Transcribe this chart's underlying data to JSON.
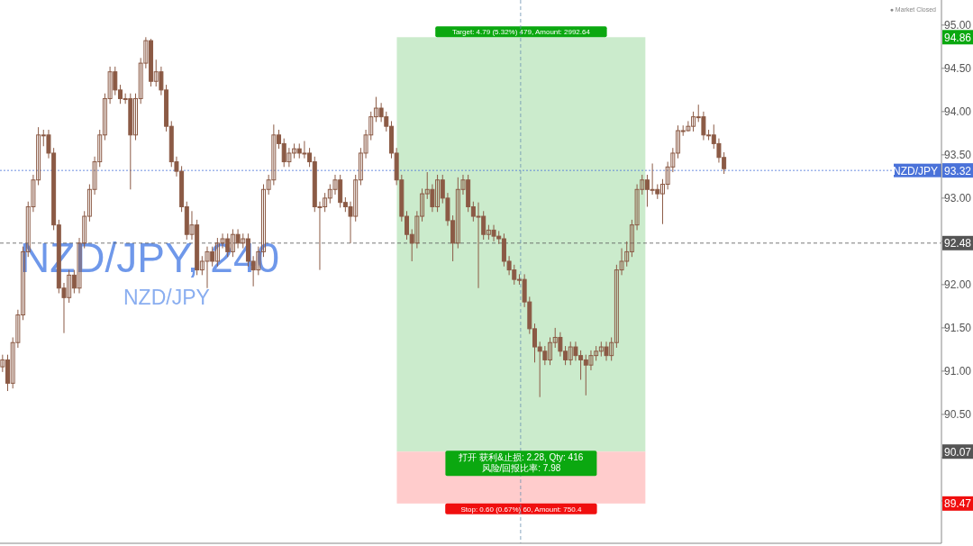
{
  "chart_data": {
    "type": "candlestick",
    "title": "NZD/JPY, 240",
    "subtitle": "NZD/JPY",
    "categories": [
      null,
      null,
      null,
      null,
      null,
      null,
      null,
      null,
      null,
      null,
      null,
      null,
      null,
      null,
      null,
      null,
      null,
      null,
      null,
      null,
      null,
      null,
      null,
      null,
      null,
      null,
      null,
      null,
      null,
      null,
      null,
      null,
      null,
      null,
      null,
      null,
      null,
      null,
      null,
      null,
      null,
      null,
      null,
      null,
      null,
      null,
      null,
      null,
      null,
      null,
      null,
      null,
      null,
      null,
      null,
      null,
      null,
      null,
      null,
      null,
      null,
      null,
      null,
      null,
      null,
      null,
      null,
      null,
      null,
      null,
      null,
      null,
      null,
      null,
      null,
      null,
      null,
      null,
      null,
      null,
      null,
      null,
      null,
      null,
      null,
      null,
      null,
      null,
      null,
      null,
      null,
      null,
      null,
      null,
      null,
      null,
      null,
      null,
      null,
      null,
      null,
      null,
      null,
      null,
      null,
      null,
      null,
      null,
      null,
      null,
      null,
      null,
      null,
      null,
      null,
      null,
      null,
      null,
      null,
      null,
      null,
      null,
      null,
      null,
      null,
      null,
      null,
      null,
      null,
      null,
      null,
      null,
      null,
      null,
      null,
      null,
      null,
      null,
      null,
      null,
      null,
      null,
      null,
      null,
      null,
      null,
      null,
      null,
      null,
      null,
      null,
      null,
      null,
      null,
      null,
      null,
      null,
      null,
      null,
      null,
      null,
      null,
      null,
      null,
      null,
      null,
      null,
      null,
      null,
      null,
      null,
      null,
      null,
      null,
      null,
      null,
      null,
      null,
      null,
      null,
      null,
      null,
      null,
      null
    ],
    "color": "#8b5a45",
    "ohlc": [
      [
        91.05,
        91.19,
        90.99,
        91.13
      ],
      [
        91.13,
        91.19,
        90.77,
        90.86
      ],
      [
        90.86,
        91.39,
        90.8,
        91.33
      ],
      [
        91.33,
        91.71,
        91.27,
        91.65
      ],
      [
        91.65,
        92.44,
        91.59,
        92.38
      ],
      [
        92.38,
        92.96,
        92.32,
        92.9
      ],
      [
        92.9,
        93.27,
        92.84,
        93.21
      ],
      [
        93.21,
        93.82,
        93.15,
        93.73
      ],
      [
        93.73,
        93.79,
        93.6,
        93.73
      ],
      [
        93.73,
        93.79,
        93.46,
        93.52
      ],
      [
        93.52,
        93.58,
        92.63,
        92.69
      ],
      [
        92.69,
        92.75,
        91.9,
        91.96
      ],
      [
        91.96,
        92.02,
        91.44,
        91.85
      ],
      [
        91.85,
        92.17,
        91.79,
        92.11
      ],
      [
        92.11,
        92.17,
        91.9,
        91.96
      ],
      [
        91.96,
        92.54,
        91.9,
        92.48
      ],
      [
        92.48,
        92.85,
        92.42,
        92.79
      ],
      [
        92.79,
        93.16,
        92.73,
        93.1
      ],
      [
        93.1,
        93.48,
        93.04,
        93.42
      ],
      [
        93.42,
        93.79,
        93.36,
        93.73
      ],
      [
        93.73,
        94.21,
        93.67,
        94.15
      ],
      [
        94.15,
        94.52,
        94.09,
        94.46
      ],
      [
        94.46,
        94.52,
        94.19,
        94.25
      ],
      [
        94.25,
        94.31,
        94.09,
        94.15
      ],
      [
        94.15,
        94.21,
        94.09,
        94.15
      ],
      [
        94.15,
        94.21,
        93.1,
        93.73
      ],
      [
        93.73,
        94.21,
        93.67,
        94.15
      ],
      [
        94.15,
        94.62,
        94.09,
        94.56
      ],
      [
        94.56,
        94.86,
        94.5,
        94.82
      ],
      [
        94.82,
        94.84,
        94.29,
        94.35
      ],
      [
        94.35,
        94.6,
        94.29,
        94.46
      ],
      [
        94.46,
        94.52,
        94.19,
        94.25
      ],
      [
        94.25,
        94.31,
        93.77,
        93.83
      ],
      [
        93.83,
        93.89,
        93.36,
        93.42
      ],
      [
        93.42,
        93.48,
        93.25,
        93.31
      ],
      [
        93.31,
        93.37,
        92.84,
        92.9
      ],
      [
        92.9,
        92.96,
        92.52,
        92.58
      ],
      [
        92.58,
        92.85,
        92.52,
        92.69
      ],
      [
        92.69,
        92.75,
        92.11,
        92.17
      ],
      [
        92.17,
        92.33,
        92.11,
        92.27
      ],
      [
        92.27,
        92.44,
        91.96,
        92.38
      ],
      [
        92.38,
        92.44,
        92.21,
        92.27
      ],
      [
        92.27,
        92.54,
        92.21,
        92.48
      ],
      [
        92.48,
        92.59,
        92.42,
        92.53
      ],
      [
        92.53,
        92.59,
        92.32,
        92.38
      ],
      [
        92.38,
        92.64,
        92.32,
        92.58
      ],
      [
        92.58,
        92.64,
        92.42,
        92.48
      ],
      [
        92.48,
        92.59,
        92.42,
        92.53
      ],
      [
        92.53,
        92.59,
        92.21,
        92.27
      ],
      [
        92.27,
        92.33,
        91.98,
        92.17
      ],
      [
        92.17,
        92.44,
        92.11,
        92.38
      ],
      [
        92.38,
        93.16,
        92.32,
        93.1
      ],
      [
        93.1,
        93.27,
        93.04,
        93.21
      ],
      [
        93.21,
        93.85,
        93.15,
        93.73
      ],
      [
        93.73,
        93.79,
        93.57,
        93.63
      ],
      [
        93.63,
        93.69,
        93.36,
        93.42
      ],
      [
        93.42,
        93.58,
        93.36,
        93.52
      ],
      [
        93.52,
        93.63,
        93.46,
        93.57
      ],
      [
        93.57,
        93.63,
        93.46,
        93.52
      ],
      [
        93.52,
        93.66,
        93.46,
        93.52
      ],
      [
        93.52,
        93.58,
        93.36,
        93.42
      ],
      [
        93.42,
        93.48,
        92.84,
        92.9
      ],
      [
        92.9,
        92.96,
        92.17,
        92.9
      ],
      [
        92.9,
        93.06,
        92.84,
        93.0
      ],
      [
        93.0,
        93.16,
        92.94,
        93.1
      ],
      [
        93.1,
        93.27,
        93.04,
        93.21
      ],
      [
        93.21,
        93.27,
        92.89,
        92.95
      ],
      [
        92.95,
        93.01,
        92.84,
        92.9
      ],
      [
        92.9,
        92.96,
        92.48,
        92.79
      ],
      [
        92.79,
        93.27,
        92.73,
        93.21
      ],
      [
        93.21,
        93.58,
        93.15,
        93.52
      ],
      [
        93.52,
        93.79,
        93.46,
        93.73
      ],
      [
        93.73,
        94.0,
        93.67,
        93.94
      ],
      [
        93.94,
        94.17,
        93.88,
        94.04
      ],
      [
        94.04,
        94.1,
        93.88,
        93.94
      ],
      [
        93.94,
        94.0,
        93.77,
        93.83
      ],
      [
        93.83,
        93.89,
        93.46,
        93.52
      ],
      [
        93.52,
        93.58,
        93.15,
        93.21
      ],
      [
        93.21,
        93.27,
        92.73,
        92.79
      ],
      [
        92.79,
        92.85,
        92.52,
        92.58
      ],
      [
        92.58,
        92.64,
        92.27,
        92.48
      ],
      [
        92.48,
        92.85,
        92.42,
        92.79
      ],
      [
        92.79,
        93.11,
        92.73,
        93.05
      ],
      [
        93.05,
        93.3,
        92.99,
        93.1
      ],
      [
        93.1,
        93.16,
        92.84,
        92.9
      ],
      [
        92.9,
        93.27,
        92.84,
        93.21
      ],
      [
        93.21,
        93.27,
        92.94,
        93.0
      ],
      [
        93.0,
        93.06,
        92.68,
        92.74
      ],
      [
        92.74,
        92.8,
        92.27,
        92.48
      ],
      [
        92.48,
        93.24,
        92.42,
        93.1
      ],
      [
        93.1,
        93.27,
        93.04,
        93.21
      ],
      [
        93.21,
        93.27,
        92.84,
        92.9
      ],
      [
        92.9,
        92.96,
        92.73,
        92.79
      ],
      [
        92.79,
        92.95,
        91.96,
        92.79
      ],
      [
        92.79,
        92.85,
        92.52,
        92.58
      ],
      [
        92.58,
        92.69,
        92.52,
        92.63
      ],
      [
        92.63,
        92.69,
        92.5,
        92.56
      ],
      [
        92.56,
        92.62,
        92.47,
        92.53
      ],
      [
        92.53,
        92.59,
        92.21,
        92.27
      ],
      [
        92.27,
        92.33,
        92.11,
        92.17
      ],
      [
        92.17,
        92.23,
        92.0,
        92.06
      ],
      [
        92.06,
        92.12,
        92.0,
        92.06
      ],
      [
        92.06,
        92.12,
        91.74,
        91.8
      ],
      [
        91.8,
        91.86,
        91.43,
        91.49
      ],
      [
        91.49,
        91.55,
        91.1,
        91.28
      ],
      [
        91.28,
        91.34,
        90.7,
        91.23
      ],
      [
        91.23,
        91.29,
        91.07,
        91.13
      ],
      [
        91.13,
        91.39,
        91.07,
        91.33
      ],
      [
        91.33,
        91.5,
        91.27,
        91.39
      ],
      [
        91.39,
        91.45,
        91.17,
        91.23
      ],
      [
        91.23,
        91.29,
        91.07,
        91.13
      ],
      [
        91.13,
        91.34,
        91.07,
        91.28
      ],
      [
        91.28,
        91.34,
        91.12,
        91.18
      ],
      [
        91.18,
        91.24,
        90.9,
        91.13
      ],
      [
        91.13,
        91.19,
        90.72,
        91.07
      ],
      [
        91.07,
        91.24,
        91.01,
        91.18
      ],
      [
        91.18,
        91.29,
        91.12,
        91.23
      ],
      [
        91.23,
        91.34,
        91.17,
        91.28
      ],
      [
        91.28,
        91.34,
        91.12,
        91.18
      ],
      [
        91.18,
        91.39,
        91.12,
        91.33
      ],
      [
        91.33,
        92.23,
        91.27,
        92.17
      ],
      [
        92.17,
        92.42,
        92.11,
        92.27
      ],
      [
        92.27,
        92.5,
        92.21,
        92.38
      ],
      [
        92.38,
        92.75,
        92.32,
        92.69
      ],
      [
        92.69,
        93.16,
        92.63,
        93.1
      ],
      [
        93.1,
        93.27,
        93.04,
        93.21
      ],
      [
        93.21,
        93.27,
        92.9,
        93.1
      ],
      [
        93.1,
        93.4,
        93.04,
        93.1
      ],
      [
        93.1,
        93.16,
        92.99,
        93.05
      ],
      [
        93.05,
        93.22,
        92.7,
        93.16
      ],
      [
        93.16,
        93.42,
        93.1,
        93.36
      ],
      [
        93.36,
        93.58,
        93.3,
        93.52
      ],
      [
        93.52,
        93.84,
        93.46,
        93.78
      ],
      [
        93.78,
        93.84,
        93.72,
        93.78
      ],
      [
        93.78,
        93.89,
        93.77,
        93.83
      ],
      [
        93.83,
        94.0,
        93.77,
        93.94
      ],
      [
        93.94,
        94.08,
        93.88,
        93.94
      ],
      [
        93.94,
        94.0,
        93.67,
        93.73
      ],
      [
        93.73,
        93.79,
        93.67,
        93.73
      ],
      [
        93.73,
        93.85,
        93.57,
        93.63
      ],
      [
        93.63,
        93.69,
        93.41,
        93.47
      ],
      [
        93.47,
        93.53,
        93.28,
        93.34
      ],
      null,
      null,
      null,
      null,
      null,
      null,
      null,
      null,
      null,
      null,
      null,
      null,
      null,
      null,
      null,
      null,
      null,
      null,
      null,
      null,
      null,
      null,
      null,
      null,
      null,
      null,
      null,
      null,
      null,
      null,
      null,
      null,
      null,
      null,
      null,
      null,
      null,
      null,
      null,
      null,
      null,
      null
    ],
    "ylim": [
      89.01,
      95.29
    ],
    "yticks": [
      {
        "value": 89.5,
        "label": null
      },
      {
        "value": 90,
        "label": null
      },
      {
        "value": 90.5,
        "label": "90.50"
      },
      {
        "value": 91,
        "label": "91.00"
      },
      {
        "value": 91.5,
        "label": "91.50"
      },
      {
        "value": 92,
        "label": "92.00"
      },
      {
        "value": 92.5,
        "label": null
      },
      {
        "value": 93,
        "label": "93.00"
      },
      {
        "value": 93.5,
        "label": "93.50"
      },
      {
        "value": 94,
        "label": "94.00"
      },
      {
        "value": 94.5,
        "label": "94.50"
      },
      {
        "value": 95,
        "label": "95.00"
      }
    ],
    "tick_labels": "y",
    "ref_lines": [
      {
        "axis": "y",
        "value": 93.32,
        "label": "NZD/JPY",
        "color": "#4a72d9",
        "line_style": "dotted"
      },
      {
        "axis": "y",
        "value": 92.48,
        "color": "#555555",
        "line_style": "dashed"
      }
    ],
    "bands": [
      {
        "axis": "y",
        "from": 90.07,
        "to": 94.86,
        "color": "#cbebcc",
        "label": "Target: 4.79 (5.32%) 479, Amount: 2992.64"
      },
      {
        "axis": "y",
        "from": 89.47,
        "to": 90.07,
        "color": "#ffcccc",
        "label": "Stop: 0.60 (0.67%) 60, Amount: 750.4"
      }
    ],
    "annotations": [
      {
        "text": "94.86",
        "y": 94.86
      },
      {
        "text": "93.32",
        "y": 93.32
      },
      {
        "text": "92.48",
        "y": 92.48
      },
      {
        "text": "90.07",
        "y": 90.07
      },
      {
        "text": "89.47",
        "y": 89.47
      },
      {
        "text": "打开 获利&止损: 2.28, Qty: 416\n风险/回报比率: 7.98",
        "y": 90.07
      },
      "● Market Closed"
    ]
  }
}
